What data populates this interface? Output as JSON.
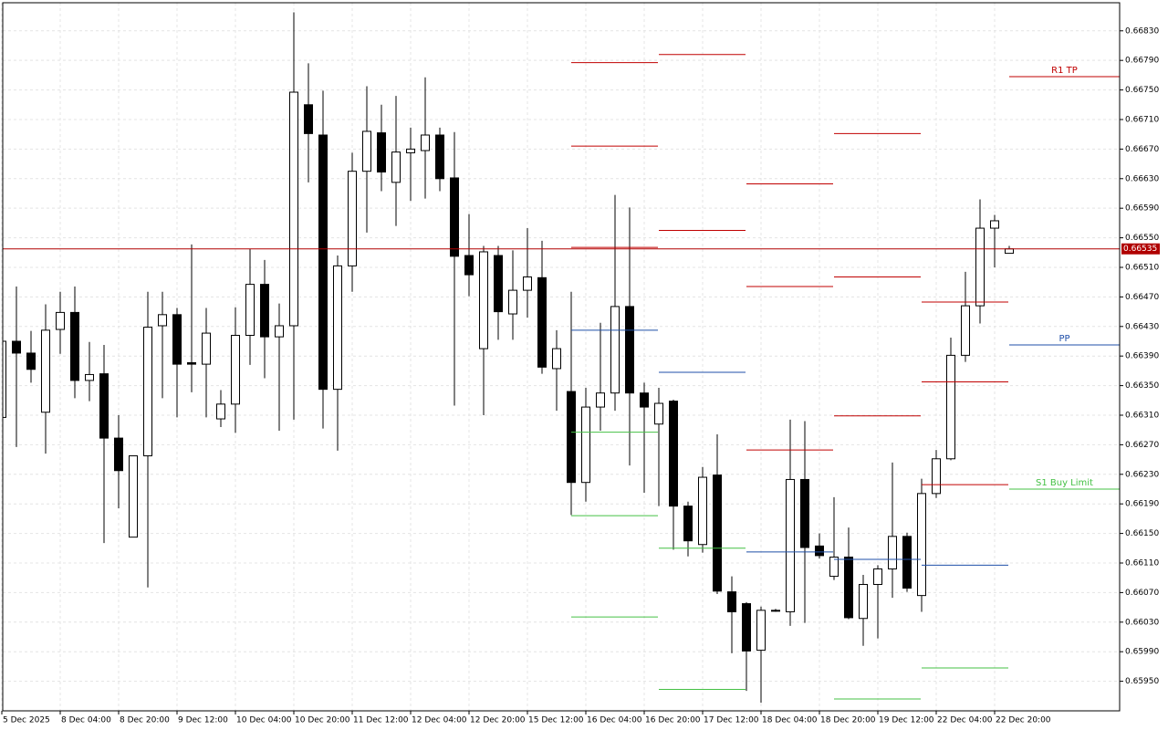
{
  "chart_data": {
    "type": "candlestick",
    "ylim": [
      0.6591,
      0.66868
    ],
    "yticks": [
      {
        "value": 0.6683,
        "label": "0.66830"
      },
      {
        "value": 0.6679,
        "label": "0.66790"
      },
      {
        "value": 0.6675,
        "label": "0.66750"
      },
      {
        "value": 0.6671,
        "label": "0.66710"
      },
      {
        "value": 0.6667,
        "label": "0.66670"
      },
      {
        "value": 0.6663,
        "label": "0.66630"
      },
      {
        "value": 0.6659,
        "label": "0.66590"
      },
      {
        "value": 0.6655,
        "label": "0.66550"
      },
      {
        "value": 0.6651,
        "label": "0.66510"
      },
      {
        "value": 0.6647,
        "label": "0.66470"
      },
      {
        "value": 0.6643,
        "label": "0.66430"
      },
      {
        "value": 0.6639,
        "label": "0.66390"
      },
      {
        "value": 0.6635,
        "label": "0.66350"
      },
      {
        "value": 0.6631,
        "label": "0.66310"
      },
      {
        "value": 0.6627,
        "label": "0.66270"
      },
      {
        "value": 0.6623,
        "label": "0.66230"
      },
      {
        "value": 0.6619,
        "label": "0.66190"
      },
      {
        "value": 0.6615,
        "label": "0.66150"
      },
      {
        "value": 0.6611,
        "label": "0.66110"
      },
      {
        "value": 0.6607,
        "label": "0.66070"
      },
      {
        "value": 0.6603,
        "label": "0.66030"
      },
      {
        "value": 0.6599,
        "label": "0.65990"
      },
      {
        "value": 0.6595,
        "label": "0.65950"
      }
    ],
    "grid": true,
    "up_color": "#ffffff",
    "down_color": "#000000",
    "outline_color": "#000000",
    "categories": [
      "5 Dec 2025",
      null,
      null,
      null,
      "8 Dec 04:00",
      null,
      null,
      null,
      "8 Dec 20:00",
      null,
      null,
      null,
      "9 Dec 12:00",
      null,
      null,
      null,
      "10 Dec 04:00",
      null,
      null,
      null,
      "10 Dec 20:00",
      null,
      null,
      null,
      "11 Dec 12:00",
      null,
      null,
      null,
      "12 Dec 04:00",
      null,
      null,
      null,
      "12 Dec 20:00",
      null,
      null,
      null,
      "15 Dec 12:00",
      null,
      null,
      null,
      "16 Dec 04:00",
      null,
      null,
      null,
      "16 Dec 20:00",
      null,
      null,
      null,
      "17 Dec 12:00",
      null,
      null,
      null,
      "18 Dec 04:00",
      null,
      null,
      null,
      "18 Dec 20:00",
      null,
      null,
      null,
      "19 Dec 12:00",
      null,
      null,
      null,
      "22 Dec 04:00",
      null,
      null,
      null,
      "22 Dec 20:00",
      null
    ],
    "ohlc": [
      [
        0.66307,
        0.66415,
        0.66307,
        0.6641
      ],
      [
        0.6641,
        0.66484,
        0.66267,
        0.66394
      ],
      [
        0.66394,
        0.66424,
        0.66354,
        0.66372
      ],
      [
        0.66314,
        0.6646,
        0.66258,
        0.66425
      ],
      [
        0.66426,
        0.66477,
        0.66393,
        0.66449
      ],
      [
        0.66449,
        0.66484,
        0.66333,
        0.66357
      ],
      [
        0.66357,
        0.66409,
        0.66329,
        0.66365
      ],
      [
        0.66366,
        0.66405,
        0.66137,
        0.66279
      ],
      [
        0.66279,
        0.6631,
        0.66184,
        0.66235
      ],
      [
        0.66145,
        0.66255,
        0.66145,
        0.66255
      ],
      [
        0.66255,
        0.66477,
        0.66077,
        0.66429
      ],
      [
        0.66431,
        0.66477,
        0.66333,
        0.66446
      ],
      [
        0.66446,
        0.66455,
        0.66307,
        0.66379
      ],
      [
        0.66381,
        0.66541,
        0.66341,
        0.66379
      ],
      [
        0.66379,
        0.66455,
        0.66307,
        0.66421
      ],
      [
        0.66305,
        0.66344,
        0.66294,
        0.66325
      ],
      [
        0.66325,
        0.66456,
        0.66286,
        0.66418
      ],
      [
        0.66418,
        0.66535,
        0.66378,
        0.66487
      ],
      [
        0.66487,
        0.6652,
        0.6636,
        0.66416
      ],
      [
        0.66416,
        0.66461,
        0.66289,
        0.66431
      ],
      [
        0.66431,
        0.66855,
        0.66304,
        0.66747
      ],
      [
        0.6673,
        0.66786,
        0.66625,
        0.66691
      ],
      [
        0.66689,
        0.66749,
        0.66292,
        0.66345
      ],
      [
        0.66345,
        0.66526,
        0.66262,
        0.66512
      ],
      [
        0.66512,
        0.66665,
        0.66477,
        0.6664
      ],
      [
        0.6664,
        0.66755,
        0.66557,
        0.66694
      ],
      [
        0.66692,
        0.6673,
        0.66613,
        0.66639
      ],
      [
        0.66625,
        0.66742,
        0.66566,
        0.66666
      ],
      [
        0.66665,
        0.66699,
        0.666,
        0.6667
      ],
      [
        0.66668,
        0.66767,
        0.66603,
        0.66689
      ],
      [
        0.66689,
        0.66699,
        0.66613,
        0.6663
      ],
      [
        0.66631,
        0.66693,
        0.66323,
        0.66525
      ],
      [
        0.66526,
        0.66582,
        0.66471,
        0.665
      ],
      [
        0.664,
        0.66539,
        0.6631,
        0.66531
      ],
      [
        0.66526,
        0.66539,
        0.66412,
        0.6645
      ],
      [
        0.66447,
        0.66533,
        0.66412,
        0.66479
      ],
      [
        0.66479,
        0.66563,
        0.66442,
        0.66497
      ],
      [
        0.66496,
        0.66546,
        0.66366,
        0.66375
      ],
      [
        0.66373,
        0.66425,
        0.66316,
        0.664
      ],
      [
        0.66342,
        0.66477,
        0.66175,
        0.66219
      ],
      [
        0.66219,
        0.66347,
        0.66193,
        0.66321
      ],
      [
        0.66321,
        0.66435,
        0.66289,
        0.6634
      ],
      [
        0.6634,
        0.66608,
        0.66316,
        0.66457
      ],
      [
        0.66457,
        0.66591,
        0.66242,
        0.6634
      ],
      [
        0.6634,
        0.66354,
        0.66205,
        0.66321
      ],
      [
        0.66298,
        0.66347,
        0.66187,
        0.66326
      ],
      [
        0.66329,
        0.66331,
        0.66128,
        0.66187
      ],
      [
        0.66187,
        0.66193,
        0.66119,
        0.6614
      ],
      [
        0.66135,
        0.6624,
        0.66124,
        0.66226
      ],
      [
        0.66229,
        0.66284,
        0.66068,
        0.66072
      ],
      [
        0.66071,
        0.66092,
        0.65988,
        0.66044
      ],
      [
        0.66055,
        0.66057,
        0.65937,
        0.65991
      ],
      [
        0.65992,
        0.66051,
        0.65921,
        0.66046
      ],
      [
        0.66046,
        0.66048,
        0.66044,
        0.66045
      ],
      [
        0.66044,
        0.66304,
        0.66025,
        0.66223
      ],
      [
        0.66223,
        0.66302,
        0.66029,
        0.66131
      ],
      [
        0.66133,
        0.6615,
        0.66116,
        0.6612
      ],
      [
        0.66092,
        0.66199,
        0.66087,
        0.66118
      ],
      [
        0.66118,
        0.66158,
        0.66034,
        0.66036
      ],
      [
        0.66035,
        0.66094,
        0.65998,
        0.66081
      ],
      [
        0.66081,
        0.66107,
        0.66008,
        0.66102
      ],
      [
        0.66102,
        0.66246,
        0.66063,
        0.66146
      ],
      [
        0.66146,
        0.66151,
        0.66071,
        0.66076
      ],
      [
        0.66066,
        0.66224,
        0.66044,
        0.66204
      ],
      [
        0.66204,
        0.66263,
        0.66198,
        0.66251
      ],
      [
        0.66251,
        0.66415,
        0.66249,
        0.66391
      ],
      [
        0.66391,
        0.66504,
        0.66382,
        0.66458
      ],
      [
        0.66458,
        0.66602,
        0.66434,
        0.66563
      ],
      [
        0.66563,
        0.66581,
        0.6651,
        0.66573
      ],
      [
        0.66529,
        0.66539,
        0.66529,
        0.66535
      ]
    ],
    "current_price": 0.66535,
    "current_price_color": "#b00000",
    "level_colors": {
      "resistance": "#c00000",
      "pivot": "#1f4fa8",
      "support": "#44c044"
    },
    "pivots": [
      {
        "start": 39,
        "levels": [
          {
            "price": 0.66787,
            "kind": "resistance"
          },
          {
            "price": 0.66674,
            "kind": "resistance"
          },
          {
            "price": 0.66537,
            "kind": "resistance"
          },
          {
            "price": 0.66425,
            "kind": "pivot"
          },
          {
            "price": 0.66287,
            "kind": "support"
          },
          {
            "price": 0.66174,
            "kind": "support"
          },
          {
            "price": 0.66037,
            "kind": "support"
          }
        ]
      },
      {
        "start": 45,
        "levels": [
          {
            "price": 0.66798,
            "kind": "resistance"
          },
          {
            "price": 0.6656,
            "kind": "resistance"
          },
          {
            "price": 0.66368,
            "kind": "pivot"
          },
          {
            "price": 0.6613,
            "kind": "support"
          },
          {
            "price": 0.65939,
            "kind": "support"
          }
        ]
      },
      {
        "start": 51,
        "levels": [
          {
            "price": 0.66623,
            "kind": "resistance"
          },
          {
            "price": 0.66484,
            "kind": "resistance"
          },
          {
            "price": 0.66263,
            "kind": "resistance"
          },
          {
            "price": 0.66125,
            "kind": "pivot"
          }
        ]
      },
      {
        "start": 57,
        "levels": [
          {
            "price": 0.66691,
            "kind": "resistance"
          },
          {
            "price": 0.66497,
            "kind": "resistance"
          },
          {
            "price": 0.66309,
            "kind": "resistance"
          },
          {
            "price": 0.66115,
            "kind": "pivot"
          },
          {
            "price": 0.65926,
            "kind": "support"
          }
        ]
      },
      {
        "start": 63,
        "levels": [
          {
            "price": 0.66463,
            "kind": "resistance"
          },
          {
            "price": 0.66355,
            "kind": "resistance"
          },
          {
            "price": 0.66216,
            "kind": "resistance"
          },
          {
            "price": 0.66107,
            "kind": "pivot"
          },
          {
            "price": 0.65968,
            "kind": "support"
          }
        ]
      },
      {
        "start": 69,
        "levels": [
          {
            "price": 0.66768,
            "kind": "resistance",
            "label": "R1 TP"
          },
          {
            "price": 0.66405,
            "kind": "pivot",
            "label": "PP"
          },
          {
            "price": 0.6621,
            "kind": "support",
            "label": "S1 Buy Limit"
          }
        ]
      }
    ]
  }
}
